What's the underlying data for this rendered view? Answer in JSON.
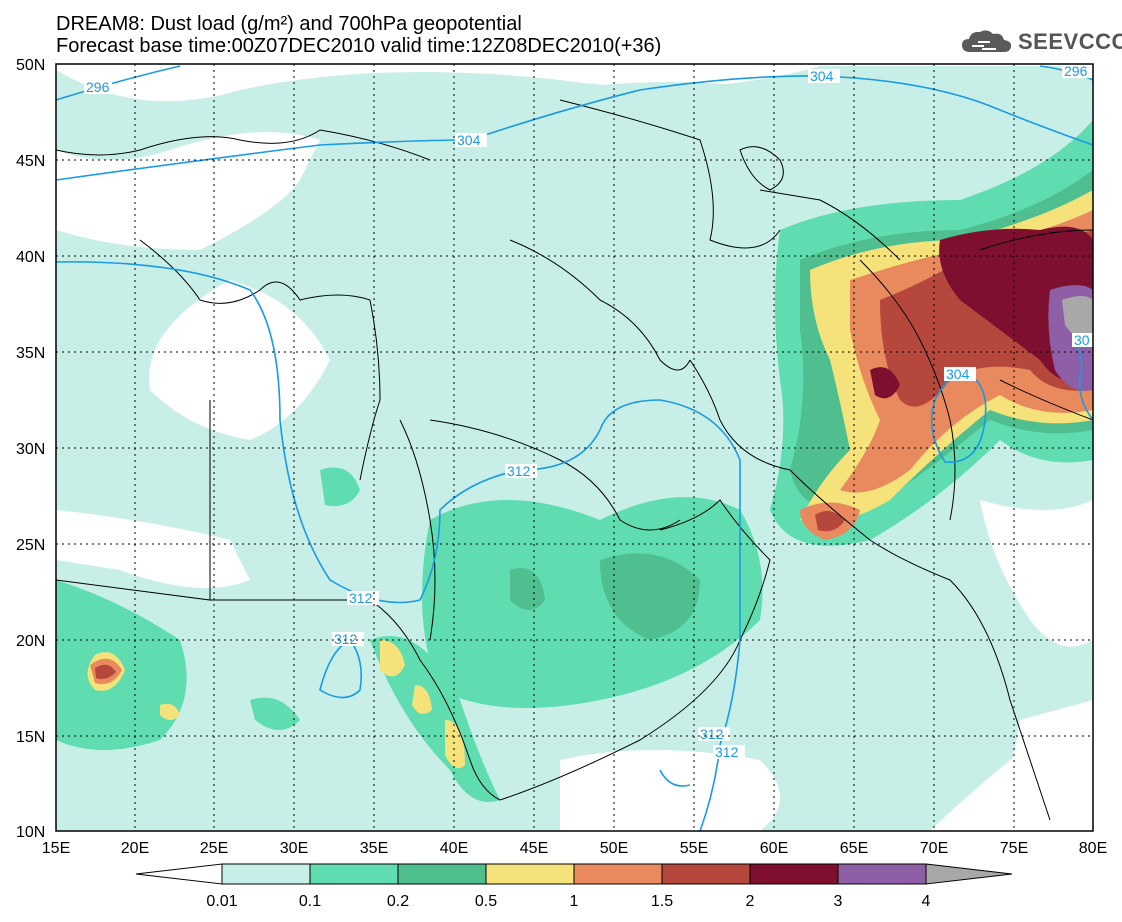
{
  "title": {
    "line1": "DREAM8: Dust load (g/m²) and 700hPa geopotential",
    "line2": "Forecast base time:00Z07DEC2010 valid time:12Z08DEC2010(+36)"
  },
  "logo": {
    "text": "SEEVCCC",
    "icon": "cloud-icon"
  },
  "map": {
    "lat_labels": [
      "50N",
      "45N",
      "40N",
      "35N",
      "30N",
      "25N",
      "20N",
      "15N",
      "10N"
    ],
    "lon_labels": [
      "15E",
      "20E",
      "25E",
      "30E",
      "35E",
      "40E",
      "45E",
      "50E",
      "55E",
      "60E",
      "65E",
      "70E",
      "75E",
      "80E"
    ],
    "contour_labels": [
      "296",
      "304",
      "304",
      "296",
      "312",
      "312",
      "312",
      "304",
      "312",
      "312",
      "30"
    ],
    "contour_color": "#1a9be6"
  },
  "colorbar": {
    "labels": [
      "0.01",
      "0.1",
      "0.2",
      "0.5",
      "1",
      "1.5",
      "2",
      "3",
      "4"
    ],
    "colors": [
      "#ffffff",
      "#c7efe8",
      "#5fdcb0",
      "#4fbf90",
      "#f5e27a",
      "#e88a5e",
      "#b5473d",
      "#7f0f2e",
      "#8e5fa6",
      "#a8a8a8"
    ]
  }
}
